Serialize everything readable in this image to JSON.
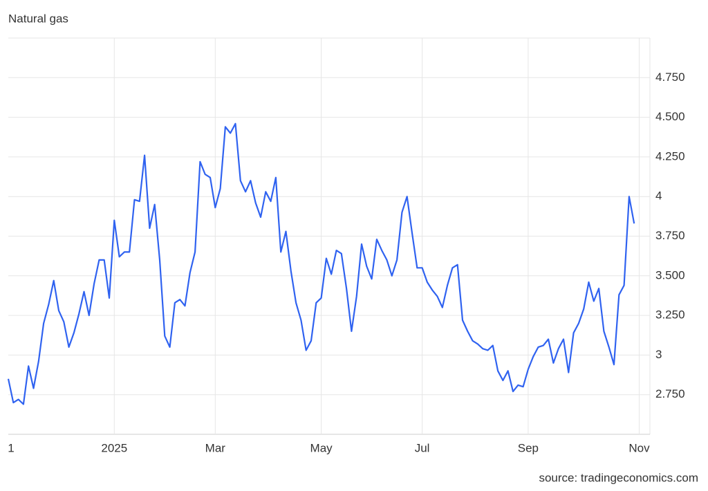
{
  "chart_data": {
    "type": "line",
    "title": "Natural gas",
    "source": "source: tradingeconomics.com",
    "color": "#2f62f0",
    "grid": true,
    "ylim": [
      2.5,
      5.0
    ],
    "yticks": [
      {
        "value": 2.75,
        "label": "2.750"
      },
      3,
      {
        "value": 3.25,
        "label": "3.250"
      },
      {
        "value": 3.5,
        "label": "3.500"
      },
      {
        "value": 3.75,
        "label": "3.750"
      },
      4,
      {
        "value": 4.25,
        "label": "4.250"
      },
      {
        "value": 4.5,
        "label": "4.500"
      },
      {
        "value": 4.75,
        "label": "4.750"
      }
    ],
    "categories": [
      "1",
      null,
      null,
      null,
      null,
      null,
      null,
      null,
      null,
      null,
      null,
      null,
      null,
      null,
      null,
      null,
      null,
      null,
      null,
      null,
      null,
      "2025",
      null,
      null,
      null,
      null,
      null,
      null,
      null,
      null,
      null,
      null,
      null,
      null,
      null,
      null,
      null,
      null,
      null,
      null,
      null,
      "Mar",
      null,
      null,
      null,
      null,
      null,
      null,
      null,
      null,
      null,
      null,
      null,
      null,
      null,
      null,
      null,
      null,
      null,
      null,
      null,
      null,
      "May",
      null,
      null,
      null,
      null,
      null,
      null,
      null,
      null,
      null,
      null,
      null,
      null,
      null,
      null,
      null,
      null,
      null,
      null,
      null,
      "Jul",
      null,
      null,
      null,
      null,
      null,
      null,
      null,
      null,
      null,
      null,
      null,
      null,
      null,
      null,
      null,
      null,
      null,
      null,
      null,
      null,
      "Sep",
      null,
      null,
      null,
      null,
      null,
      null,
      null,
      null,
      null,
      null,
      null,
      null,
      null,
      null,
      null,
      null,
      null,
      null,
      null,
      null,
      null,
      "Nov"
    ],
    "values": [
      2.85,
      2.7,
      2.72,
      2.69,
      2.93,
      2.79,
      2.96,
      3.2,
      3.32,
      3.47,
      3.28,
      3.21,
      3.05,
      3.14,
      3.26,
      3.4,
      3.25,
      3.45,
      3.6,
      3.6,
      3.36,
      3.85,
      3.62,
      3.65,
      3.65,
      3.98,
      3.97,
      4.26,
      3.8,
      3.95,
      3.6,
      3.12,
      3.05,
      3.33,
      3.35,
      3.31,
      3.52,
      3.65,
      4.22,
      4.14,
      4.12,
      3.93,
      4.05,
      4.44,
      4.4,
      4.46,
      4.1,
      4.03,
      4.1,
      3.96,
      3.87,
      4.03,
      3.97,
      4.12,
      3.65,
      3.78,
      3.53,
      3.33,
      3.22,
      3.03,
      3.09,
      3.33,
      3.36,
      3.61,
      3.51,
      3.66,
      3.64,
      3.42,
      3.15,
      3.37,
      3.7,
      3.56,
      3.48,
      3.73,
      3.66,
      3.6,
      3.5,
      3.6,
      3.9,
      4.0,
      3.77,
      3.55,
      3.55,
      3.46,
      3.41,
      3.37,
      3.3,
      3.44,
      3.55,
      3.57,
      3.22,
      3.15,
      3.09,
      3.07,
      3.04,
      3.03,
      3.06,
      2.9,
      2.84,
      2.9,
      2.77,
      2.81,
      2.8,
      2.91,
      2.99,
      3.05,
      3.06,
      3.1,
      2.95,
      3.04,
      3.1,
      2.89,
      3.14,
      3.2,
      3.29,
      3.46,
      3.34,
      3.42,
      3.15,
      3.05,
      2.94,
      3.38,
      3.44,
      4.0,
      3.83,
      null
    ]
  }
}
